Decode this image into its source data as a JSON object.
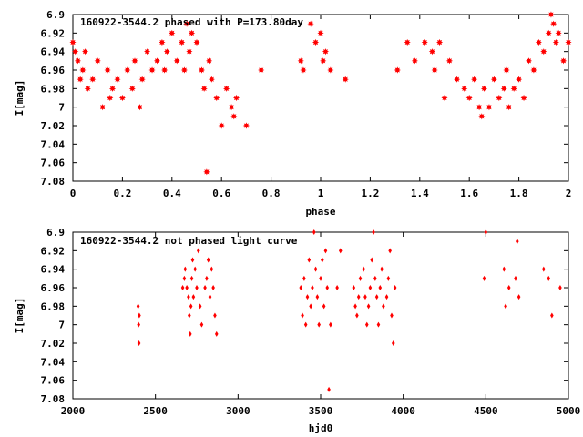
{
  "chart_data": [
    {
      "type": "scatter",
      "title": "160922-3544.2 phased with P=173.80day",
      "xlabel": "phase",
      "ylabel": "I[mag]",
      "xlim": [
        0,
        2
      ],
      "ylim": [
        6.9,
        7.08
      ],
      "y_inverted": true,
      "xticks": [
        "0",
        "0.2",
        "0.4",
        "0.6",
        "0.8",
        "1",
        "1.2",
        "1.4",
        "1.6",
        "1.8",
        "2"
      ],
      "yticks": [
        "6.9",
        "6.92",
        "6.94",
        "6.96",
        "6.98",
        "7",
        "7.02",
        "7.04",
        "7.06",
        "7.08"
      ],
      "marker": "star",
      "color": "#ff0000",
      "x": [
        0.0,
        0.01,
        0.02,
        0.03,
        0.04,
        0.05,
        0.06,
        0.08,
        0.1,
        0.12,
        0.14,
        0.15,
        0.16,
        0.18,
        0.2,
        0.22,
        0.24,
        0.25,
        0.27,
        0.28,
        0.3,
        0.32,
        0.34,
        0.36,
        0.37,
        0.38,
        0.4,
        0.42,
        0.44,
        0.45,
        0.46,
        0.47,
        0.48,
        0.5,
        0.52,
        0.53,
        0.54,
        0.55,
        0.56,
        0.58,
        0.6,
        0.62,
        0.64,
        0.65,
        0.66,
        0.7,
        0.76,
        0.92,
        0.93,
        0.96,
        0.98,
        1.0,
        1.01,
        1.02,
        1.04,
        1.1,
        1.31,
        1.35,
        1.38,
        1.42,
        1.45,
        1.46,
        1.48,
        1.5,
        1.52,
        1.55,
        1.58,
        1.6,
        1.62,
        1.64,
        1.65,
        1.66,
        1.68,
        1.7,
        1.72,
        1.74,
        1.75,
        1.76,
        1.78,
        1.8,
        1.82,
        1.84,
        1.86,
        1.88,
        1.9,
        1.92,
        1.93,
        1.94,
        1.95,
        1.96,
        1.98,
        2.0
      ],
      "y": [
        6.93,
        6.94,
        6.95,
        6.97,
        6.96,
        6.94,
        6.98,
        6.97,
        6.95,
        7.0,
        6.96,
        6.99,
        6.98,
        6.97,
        6.99,
        6.96,
        6.98,
        6.95,
        7.0,
        6.97,
        6.94,
        6.96,
        6.95,
        6.93,
        6.96,
        6.94,
        6.92,
        6.95,
        6.93,
        6.96,
        6.91,
        6.94,
        6.92,
        6.93,
        6.96,
        6.98,
        7.07,
        6.95,
        6.97,
        6.99,
        7.02,
        6.98,
        7.0,
        7.01,
        6.99,
        7.02,
        6.96,
        6.95,
        6.96,
        6.91,
        6.93,
        6.92,
        6.95,
        6.94,
        6.96,
        6.97,
        6.96,
        6.93,
        6.95,
        6.93,
        6.94,
        6.96,
        6.93,
        6.99,
        6.95,
        6.97,
        6.98,
        6.99,
        6.97,
        7.0,
        7.01,
        6.98,
        7.0,
        6.97,
        6.99,
        6.98,
        6.96,
        7.0,
        6.98,
        6.97,
        6.99,
        6.95,
        6.96,
        6.93,
        6.94,
        6.92,
        6.9,
        6.91,
        6.93,
        6.92,
        6.95,
        6.93
      ]
    },
    {
      "type": "scatter",
      "title": "160922-3544.2 not phased light curve",
      "xlabel": "hjd0",
      "ylabel": "I[mag]",
      "xlim": [
        2000,
        5000
      ],
      "ylim": [
        6.9,
        7.08
      ],
      "y_inverted": true,
      "xticks": [
        "2000",
        "2500",
        "3000",
        "3500",
        "4000",
        "4500",
        "5000"
      ],
      "yticks": [
        "6.9",
        "6.92",
        "6.94",
        "6.96",
        "6.98",
        "7",
        "7.02",
        "7.04",
        "7.06",
        "7.08"
      ],
      "marker": "diamond",
      "color": "#ff0000",
      "x": [
        2395,
        2398,
        2400,
        2402,
        2665,
        2675,
        2680,
        2690,
        2700,
        2705,
        2710,
        2715,
        2720,
        2725,
        2730,
        2740,
        2750,
        2760,
        2770,
        2780,
        2800,
        2810,
        2820,
        2830,
        2840,
        2850,
        2860,
        2870,
        3380,
        3390,
        3400,
        3410,
        3420,
        3430,
        3440,
        3450,
        3460,
        3470,
        3480,
        3490,
        3500,
        3510,
        3520,
        3530,
        3540,
        3550,
        3560,
        3600,
        3620,
        3700,
        3710,
        3720,
        3730,
        3740,
        3760,
        3770,
        3780,
        3790,
        3800,
        3810,
        3820,
        3830,
        3840,
        3850,
        3860,
        3870,
        3880,
        3900,
        3910,
        3920,
        3930,
        3940,
        3950,
        4490,
        4500,
        4610,
        4620,
        4640,
        4680,
        4690,
        4700,
        4850,
        4880,
        4900,
        4950
      ],
      "y": [
        6.98,
        7.0,
        7.02,
        6.99,
        6.96,
        6.95,
        6.94,
        6.96,
        6.97,
        6.99,
        7.01,
        6.98,
        6.95,
        6.93,
        6.97,
        6.94,
        6.96,
        6.92,
        6.98,
        7.0,
        6.96,
        6.95,
        6.93,
        6.97,
        6.94,
        6.96,
        6.99,
        7.01,
        6.96,
        6.99,
        6.95,
        7.0,
        6.97,
        6.93,
        6.98,
        6.96,
        6.9,
        6.94,
        6.97,
        7.0,
        6.95,
        6.93,
        6.98,
        6.92,
        6.96,
        7.07,
        7.0,
        6.96,
        6.92,
        6.96,
        6.98,
        6.99,
        6.97,
        6.95,
        6.94,
        6.97,
        7.0,
        6.98,
        6.96,
        6.93,
        6.9,
        6.95,
        6.97,
        7.0,
        6.96,
        6.94,
        6.98,
        6.97,
        6.95,
        6.92,
        6.99,
        7.02,
        6.96,
        6.95,
        6.9,
        6.94,
        6.98,
        6.96,
        6.95,
        6.91,
        6.97,
        6.94,
        6.95,
        6.99,
        6.96
      ]
    }
  ]
}
